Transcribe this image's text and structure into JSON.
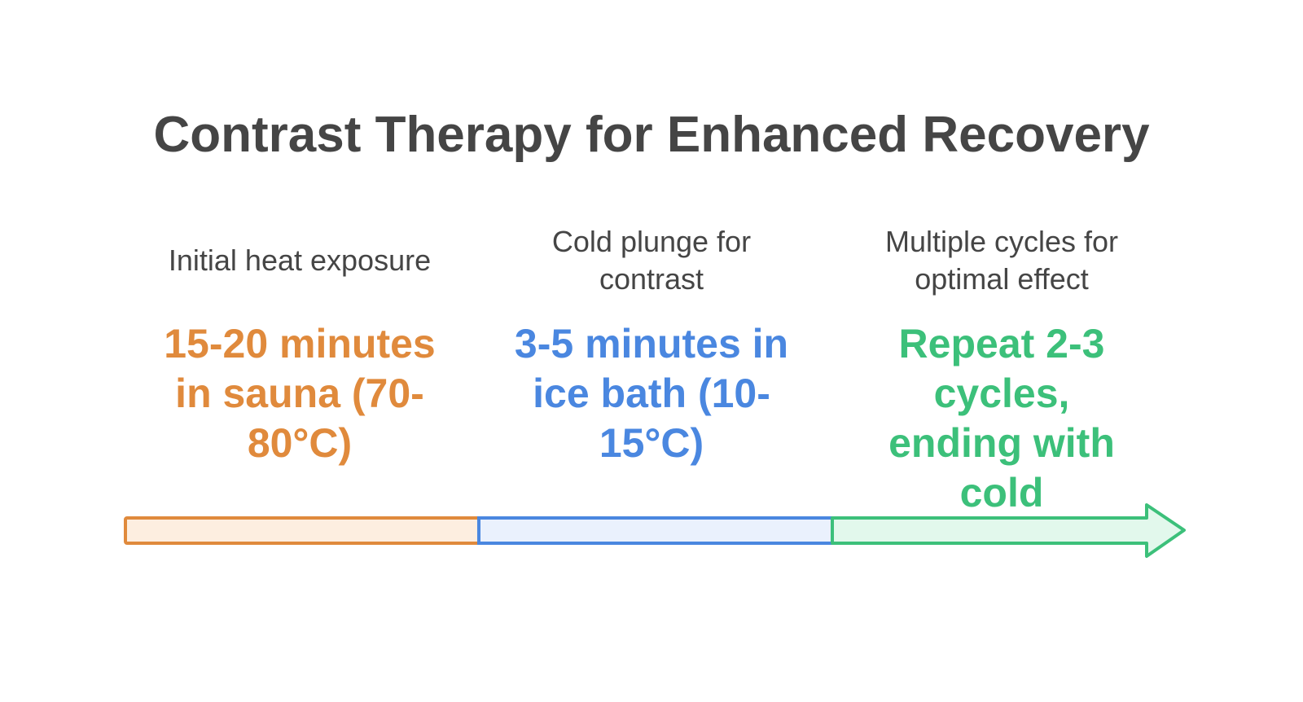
{
  "title": "Contrast Therapy for Enhanced Recovery",
  "stages": [
    {
      "label": "Initial heat exposure",
      "value": "15-20 minutes in sauna (70-80°C)",
      "color": "#e08a3c",
      "fill": "#fdeee0"
    },
    {
      "label": "Cold plunge for contrast",
      "value": "3-5 minutes in ice bath (10-15°C)",
      "color": "#4a87e0",
      "fill": "#eaf1fd"
    },
    {
      "label": "Multiple cycles for optimal effect",
      "value": "Repeat 2-3 cycles, ending with cold",
      "color": "#3cc07a",
      "fill": "#e2f8ec"
    }
  ]
}
